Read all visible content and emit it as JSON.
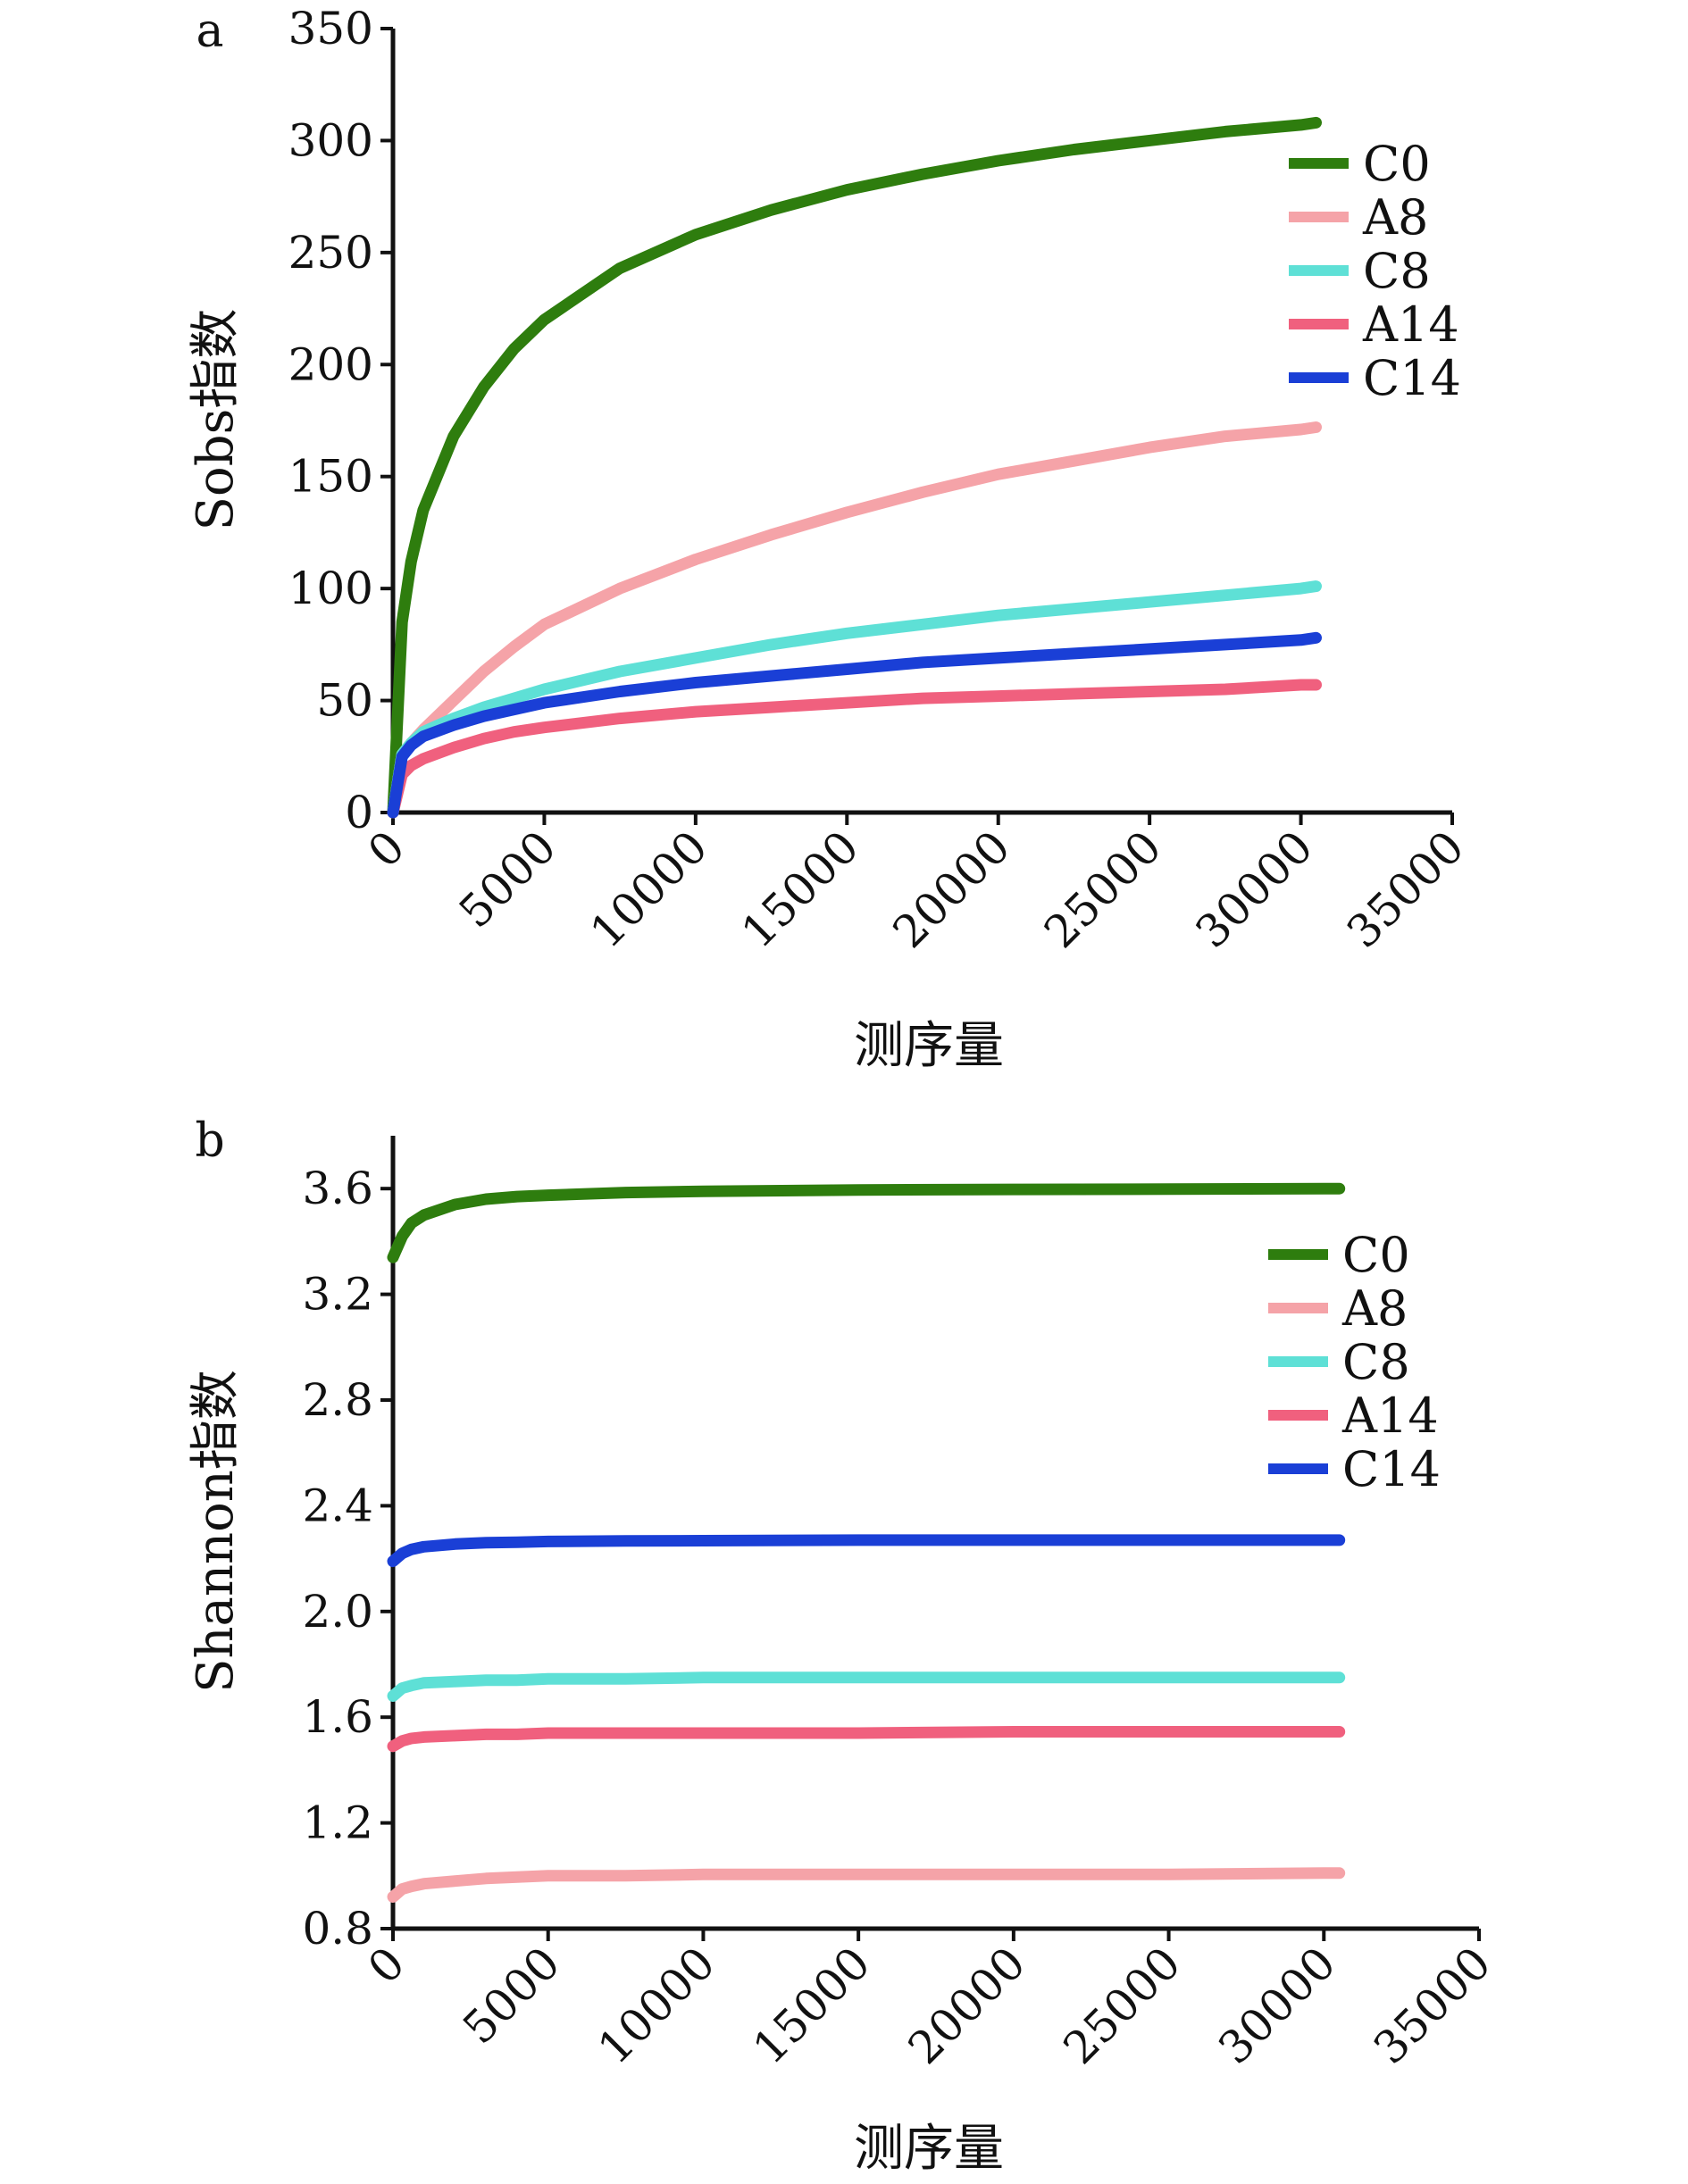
{
  "chart_data": [
    {
      "type": "line",
      "panel_label": "a",
      "title": "",
      "xlabel": "测序量",
      "ylabel": "Sobs指数",
      "xlim": [
        0,
        35000
      ],
      "ylim": [
        0,
        350
      ],
      "xticks": [
        0,
        5000,
        10000,
        15000,
        20000,
        25000,
        30000,
        35000
      ],
      "xtick_labels": [
        "0",
        "5000",
        "10000",
        "15000",
        "20000",
        "25000",
        "30000",
        "35000"
      ],
      "yticks": [
        0,
        50,
        100,
        150,
        200,
        250,
        300,
        350
      ],
      "ytick_labels": [
        "0",
        "50",
        "100",
        "150",
        "200",
        "250",
        "300",
        "350"
      ],
      "grid": false,
      "legend_position": "top-right",
      "x": [
        0,
        300,
        600,
        1000,
        2000,
        3000,
        4000,
        5000,
        7500,
        10000,
        12500,
        15000,
        17500,
        20000,
        22500,
        25000,
        27500,
        30000,
        30500
      ],
      "series": [
        {
          "name": "C0",
          "color": "#2e7d0e",
          "values": [
            0,
            85,
            112,
            135,
            168,
            190,
            207,
            220,
            243,
            258,
            269,
            278,
            285,
            291,
            296,
            300,
            304,
            307,
            308
          ]
        },
        {
          "name": "A8",
          "color": "#f5a3a8",
          "values": [
            0,
            26,
            31,
            37,
            50,
            63,
            74,
            84,
            100,
            113,
            124,
            134,
            143,
            151,
            157,
            163,
            168,
            171,
            172
          ]
        },
        {
          "name": "C8",
          "color": "#5ee0d6",
          "values": [
            0,
            26,
            31,
            36,
            42,
            47,
            51,
            55,
            63,
            69,
            75,
            80,
            84,
            88,
            91,
            94,
            97,
            100,
            101
          ]
        },
        {
          "name": "A14",
          "color": "#f0607e",
          "values": [
            0,
            17,
            21,
            24,
            29,
            33,
            36,
            38,
            42,
            45,
            47,
            49,
            51,
            52,
            53,
            54,
            55,
            57,
            57
          ]
        },
        {
          "name": "C14",
          "color": "#1a3fd6",
          "values": [
            0,
            25,
            30,
            34,
            39,
            43,
            46,
            49,
            54,
            58,
            61,
            64,
            67,
            69,
            71,
            73,
            75,
            77,
            78
          ]
        }
      ]
    },
    {
      "type": "line",
      "panel_label": "b",
      "title": "",
      "xlabel": "测序量",
      "ylabel": "Shannon指数",
      "xlim": [
        0,
        35000
      ],
      "ylim": [
        0.8,
        3.8
      ],
      "xticks": [
        0,
        5000,
        10000,
        15000,
        20000,
        25000,
        30000,
        35000
      ],
      "xtick_labels": [
        "0",
        "5000",
        "10000",
        "15000",
        "20000",
        "25000",
        "30000",
        "35000"
      ],
      "yticks": [
        0.8,
        1.2,
        1.6,
        2.0,
        2.4,
        2.8,
        3.2,
        3.6
      ],
      "ytick_labels": [
        "0.8",
        "1.2",
        "1.6",
        "2.0",
        "2.4",
        "2.8",
        "3.2",
        "3.6"
      ],
      "grid": false,
      "legend_position": "top-right",
      "x": [
        0,
        300,
        600,
        1000,
        2000,
        3000,
        4000,
        5000,
        7500,
        10000,
        15000,
        20000,
        25000,
        30000,
        30500
      ],
      "series": [
        {
          "name": "C0",
          "color": "#2e7d0e",
          "values": [
            3.34,
            3.42,
            3.47,
            3.5,
            3.54,
            3.56,
            3.57,
            3.575,
            3.585,
            3.59,
            3.595,
            3.597,
            3.598,
            3.6,
            3.6
          ]
        },
        {
          "name": "A8",
          "color": "#f5a3a8",
          "values": [
            0.92,
            0.95,
            0.96,
            0.97,
            0.98,
            0.99,
            0.995,
            1.0,
            1.0,
            1.005,
            1.005,
            1.005,
            1.005,
            1.01,
            1.01
          ]
        },
        {
          "name": "C8",
          "color": "#5ee0d6",
          "values": [
            1.68,
            1.71,
            1.72,
            1.73,
            1.735,
            1.74,
            1.74,
            1.745,
            1.745,
            1.75,
            1.75,
            1.75,
            1.75,
            1.75,
            1.75
          ]
        },
        {
          "name": "A14",
          "color": "#f0607e",
          "values": [
            1.49,
            1.51,
            1.52,
            1.525,
            1.53,
            1.535,
            1.535,
            1.54,
            1.54,
            1.54,
            1.54,
            1.545,
            1.545,
            1.545,
            1.545
          ]
        },
        {
          "name": "C14",
          "color": "#1a3fd6",
          "values": [
            2.19,
            2.22,
            2.235,
            2.245,
            2.255,
            2.26,
            2.262,
            2.265,
            2.267,
            2.268,
            2.27,
            2.27,
            2.27,
            2.27,
            2.27
          ]
        }
      ]
    }
  ]
}
